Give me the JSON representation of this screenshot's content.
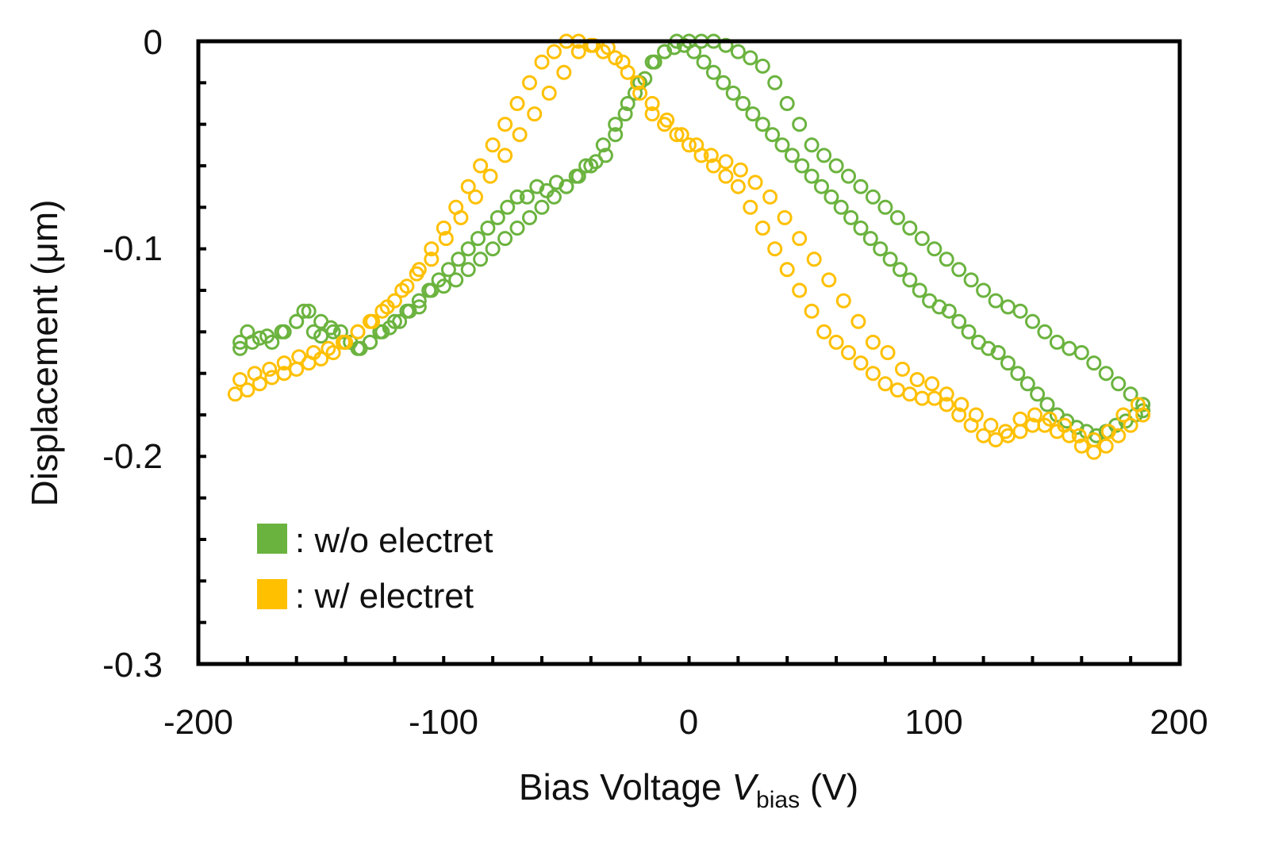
{
  "chart_data": {
    "type": "scatter",
    "title": "",
    "xlabel_main": "Bias Voltage ",
    "xlabel_var": "V",
    "xlabel_sub": "bias",
    "xlabel_unit": " (V)",
    "ylabel": "Displacement (μm)",
    "xlim": [
      -200,
      200
    ],
    "ylim": [
      -0.3,
      0
    ],
    "x_ticks": [
      "-200",
      "-100",
      "0",
      "100",
      "200"
    ],
    "y_ticks": [
      "0",
      "-0.1",
      "-0.2",
      "-0.3"
    ],
    "x_tick_values": [
      -200,
      -100,
      0,
      100,
      200
    ],
    "y_tick_values": [
      0,
      -0.1,
      -0.2,
      -0.3
    ],
    "grid": false,
    "legend_position": "bottom-left",
    "legend": [
      {
        "label": ": w/o electret",
        "color": "#6bb33f"
      },
      {
        "label": ": w/ electret",
        "color": "#ffc000"
      }
    ],
    "marker": "open-circle",
    "series": [
      {
        "name": "w/o electret",
        "color": "#6bb33f",
        "x": [
          -183,
          -180,
          -175,
          -170,
          -165,
          -160,
          -157,
          -153,
          -150,
          -146,
          -142,
          -138,
          -134,
          -130,
          -126,
          -122,
          -118,
          -114,
          -110,
          -106,
          -102,
          -98,
          -94,
          -90,
          -86,
          -82,
          -78,
          -74,
          -70,
          -66,
          -62,
          -58,
          -54,
          -50,
          -46,
          -42,
          -38,
          -34,
          -30,
          -26,
          -22,
          -18,
          -14,
          -10,
          -6,
          -2,
          2,
          6,
          10,
          14,
          18,
          22,
          26,
          30,
          34,
          38,
          42,
          46,
          50,
          54,
          58,
          62,
          66,
          70,
          74,
          78,
          82,
          86,
          90,
          94,
          98,
          102,
          106,
          110,
          114,
          118,
          122,
          126,
          130,
          134,
          138,
          142,
          146,
          150,
          154,
          158,
          162,
          166,
          170,
          174,
          178,
          182,
          185,
          -183,
          -178,
          -172,
          -166,
          -160,
          -155,
          -150,
          -145,
          -140,
          -135,
          -130,
          -125,
          -120,
          -115,
          -110,
          -105,
          -100,
          -95,
          -90,
          -85,
          -80,
          -75,
          -70,
          -65,
          -60,
          -55,
          -50,
          -45,
          -40,
          -35,
          -30,
          -25,
          -20,
          -15,
          -10,
          -5,
          0,
          5,
          10,
          15,
          20,
          25,
          30,
          35,
          40,
          45,
          50,
          55,
          60,
          65,
          70,
          75,
          80,
          85,
          90,
          95,
          100,
          105,
          110,
          115,
          120,
          125,
          130,
          135,
          140,
          145,
          150,
          155,
          160,
          165,
          170,
          175,
          180,
          185
        ],
        "y": [
          -0.145,
          -0.14,
          -0.143,
          -0.145,
          -0.14,
          -0.135,
          -0.13,
          -0.14,
          -0.142,
          -0.138,
          -0.14,
          -0.145,
          -0.148,
          -0.145,
          -0.14,
          -0.138,
          -0.135,
          -0.13,
          -0.128,
          -0.12,
          -0.115,
          -0.11,
          -0.105,
          -0.1,
          -0.095,
          -0.09,
          -0.085,
          -0.08,
          -0.075,
          -0.075,
          -0.07,
          -0.072,
          -0.068,
          -0.07,
          -0.065,
          -0.06,
          -0.058,
          -0.055,
          -0.045,
          -0.035,
          -0.025,
          -0.018,
          -0.01,
          -0.005,
          -0.003,
          -0.002,
          -0.005,
          -0.01,
          -0.015,
          -0.02,
          -0.025,
          -0.03,
          -0.035,
          -0.04,
          -0.045,
          -0.05,
          -0.055,
          -0.06,
          -0.065,
          -0.07,
          -0.075,
          -0.08,
          -0.085,
          -0.09,
          -0.095,
          -0.1,
          -0.105,
          -0.11,
          -0.115,
          -0.12,
          -0.125,
          -0.128,
          -0.13,
          -0.135,
          -0.14,
          -0.145,
          -0.148,
          -0.15,
          -0.155,
          -0.16,
          -0.165,
          -0.17,
          -0.175,
          -0.18,
          -0.183,
          -0.186,
          -0.188,
          -0.19,
          -0.188,
          -0.185,
          -0.183,
          -0.18,
          -0.178,
          -0.148,
          -0.145,
          -0.142,
          -0.14,
          -0.135,
          -0.13,
          -0.135,
          -0.14,
          -0.145,
          -0.148,
          -0.145,
          -0.14,
          -0.135,
          -0.13,
          -0.125,
          -0.12,
          -0.118,
          -0.115,
          -0.11,
          -0.105,
          -0.1,
          -0.095,
          -0.09,
          -0.085,
          -0.08,
          -0.075,
          -0.07,
          -0.065,
          -0.06,
          -0.05,
          -0.04,
          -0.03,
          -0.02,
          -0.01,
          -0.005,
          0,
          0,
          0,
          0,
          -0.002,
          -0.005,
          -0.008,
          -0.012,
          -0.02,
          -0.03,
          -0.04,
          -0.05,
          -0.055,
          -0.06,
          -0.065,
          -0.07,
          -0.075,
          -0.08,
          -0.085,
          -0.09,
          -0.095,
          -0.1,
          -0.105,
          -0.11,
          -0.115,
          -0.12,
          -0.125,
          -0.128,
          -0.13,
          -0.135,
          -0.14,
          -0.145,
          -0.148,
          -0.15,
          -0.155,
          -0.16,
          -0.165,
          -0.17,
          -0.175
        ]
      },
      {
        "name": "w/ electret",
        "color": "#ffc000",
        "x": [
          -185,
          -180,
          -175,
          -170,
          -165,
          -160,
          -155,
          -150,
          -145,
          -140,
          -135,
          -130,
          -125,
          -120,
          -115,
          -110,
          -105,
          -100,
          -95,
          -90,
          -85,
          -80,
          -75,
          -70,
          -65,
          -60,
          -55,
          -50,
          -45,
          -40,
          -35,
          -30,
          -25,
          -20,
          -15,
          -10,
          -5,
          0,
          5,
          10,
          15,
          20,
          25,
          30,
          35,
          40,
          45,
          50,
          55,
          60,
          65,
          70,
          75,
          80,
          85,
          90,
          95,
          100,
          105,
          110,
          115,
          120,
          125,
          130,
          135,
          140,
          145,
          150,
          155,
          160,
          165,
          170,
          175,
          180,
          185,
          -183,
          -177,
          -171,
          -165,
          -159,
          -153,
          -147,
          -141,
          -135,
          -129,
          -123,
          -117,
          -111,
          -105,
          -99,
          -93,
          -87,
          -81,
          -75,
          -69,
          -63,
          -57,
          -51,
          -45,
          -39,
          -33,
          -27,
          -21,
          -15,
          -9,
          -3,
          3,
          9,
          15,
          21,
          27,
          33,
          39,
          45,
          51,
          57,
          63,
          69,
          75,
          81,
          87,
          93,
          99,
          105,
          111,
          117,
          123,
          129,
          135,
          141,
          147,
          153,
          159,
          165,
          171,
          177,
          183
        ],
        "y": [
          -0.17,
          -0.168,
          -0.165,
          -0.162,
          -0.16,
          -0.158,
          -0.155,
          -0.153,
          -0.15,
          -0.145,
          -0.14,
          -0.135,
          -0.13,
          -0.125,
          -0.118,
          -0.11,
          -0.1,
          -0.09,
          -0.08,
          -0.07,
          -0.06,
          -0.05,
          -0.04,
          -0.03,
          -0.02,
          -0.01,
          -0.005,
          0,
          0,
          -0.002,
          -0.005,
          -0.008,
          -0.015,
          -0.025,
          -0.035,
          -0.04,
          -0.045,
          -0.05,
          -0.055,
          -0.06,
          -0.065,
          -0.07,
          -0.08,
          -0.09,
          -0.1,
          -0.11,
          -0.12,
          -0.13,
          -0.14,
          -0.145,
          -0.15,
          -0.155,
          -0.16,
          -0.165,
          -0.168,
          -0.17,
          -0.172,
          -0.172,
          -0.175,
          -0.18,
          -0.185,
          -0.19,
          -0.192,
          -0.19,
          -0.188,
          -0.185,
          -0.185,
          -0.188,
          -0.19,
          -0.195,
          -0.198,
          -0.195,
          -0.19,
          -0.185,
          -0.18,
          -0.163,
          -0.16,
          -0.158,
          -0.155,
          -0.152,
          -0.15,
          -0.148,
          -0.145,
          -0.14,
          -0.135,
          -0.128,
          -0.12,
          -0.112,
          -0.105,
          -0.095,
          -0.085,
          -0.075,
          -0.065,
          -0.055,
          -0.045,
          -0.035,
          -0.025,
          -0.015,
          -0.005,
          -0.002,
          -0.003,
          -0.01,
          -0.02,
          -0.03,
          -0.038,
          -0.045,
          -0.05,
          -0.055,
          -0.058,
          -0.062,
          -0.068,
          -0.075,
          -0.085,
          -0.095,
          -0.105,
          -0.115,
          -0.125,
          -0.135,
          -0.145,
          -0.15,
          -0.158,
          -0.163,
          -0.165,
          -0.17,
          -0.175,
          -0.18,
          -0.185,
          -0.188,
          -0.182,
          -0.18,
          -0.182,
          -0.185,
          -0.19,
          -0.192,
          -0.188,
          -0.18,
          -0.175
        ]
      }
    ]
  }
}
